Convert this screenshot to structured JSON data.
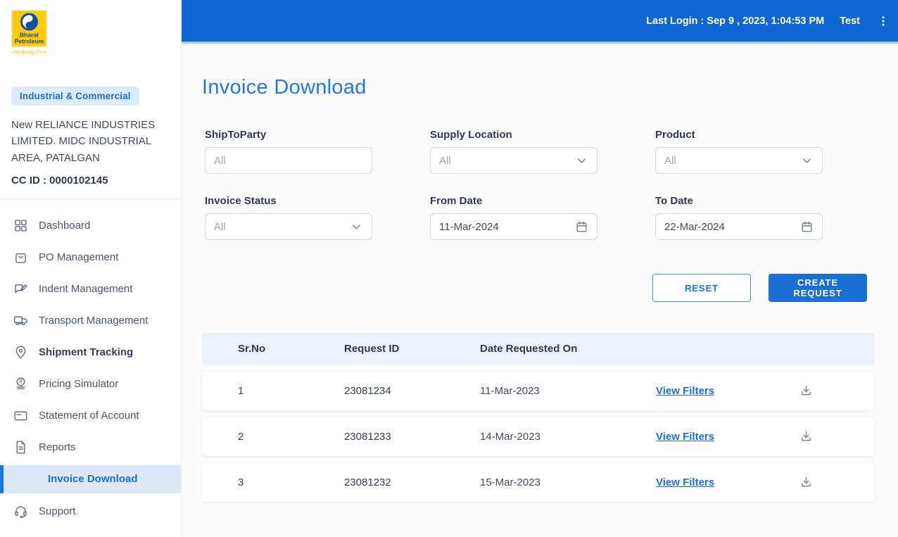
{
  "colors": {
    "header_blue": "#0d66d1",
    "header_underline": "#a9c7ee",
    "title_blue": "#2077e4",
    "accent_blue": "#1a6fd4",
    "active_nav_bg": "#dbe9f9",
    "badge_bg": "#dcebfc",
    "table_header_bg": "#edf1f9"
  },
  "brand": {
    "name_line1": "Bharat",
    "name_line2": "Petroleum",
    "tagline": "energizing lives"
  },
  "topbar": {
    "last_login_label": "Last Login :",
    "last_login_value": "Sep 9 , 2023, 1:04:53 PM",
    "user": "Test",
    "menu_icon": "kebab-menu-icon"
  },
  "sidebar": {
    "badge": "Industrial & Commercial",
    "company": "New RELIANCE INDUSTRIES LIMITED. MIDC INDUSTRIAL AREA, PATALGAN",
    "cc_id": "CC ID : 0000102145",
    "items": [
      {
        "label": "Dashboard",
        "icon": "dashboard-grid-icon"
      },
      {
        "label": "PO Management",
        "icon": "po-bag-icon"
      },
      {
        "label": "Indent Management",
        "icon": "indent-edit-icon"
      },
      {
        "label": "Transport Management",
        "icon": "truck-icon"
      },
      {
        "label": "Shipment Tracking",
        "icon": "location-pin-icon",
        "emphasis": true
      },
      {
        "label": "Pricing Simulator",
        "icon": "rupee-coin-icon"
      },
      {
        "label": "Statement of Account",
        "icon": "card-icon"
      },
      {
        "label": "Reports",
        "icon": "report-doc-icon"
      },
      {
        "label": "Invoice Download",
        "active": true
      },
      {
        "label": "Support",
        "icon": "headset-icon"
      }
    ]
  },
  "main": {
    "title": "Invoice Download",
    "filters": [
      {
        "label": "ShipToParty",
        "type": "text",
        "placeholder": "All"
      },
      {
        "label": "Supply Location",
        "type": "select",
        "value": "All"
      },
      {
        "label": "Product",
        "type": "select",
        "value": "All"
      },
      {
        "label": "Invoice Status",
        "type": "select",
        "value": "All"
      },
      {
        "label": "From Date",
        "type": "date",
        "value": "11-Mar-2024"
      },
      {
        "label": "To Date",
        "type": "date",
        "value": "22-Mar-2024"
      }
    ],
    "buttons": {
      "reset": "RESET",
      "create": "CREATE REQUEST"
    },
    "table": {
      "headers": [
        "Sr.No",
        "Request ID",
        "Date Requested On"
      ],
      "rows": [
        {
          "sr": "1",
          "request_id": "23081234",
          "date": "11-Mar-2023",
          "action": "View Filters"
        },
        {
          "sr": "2",
          "request_id": "23081233",
          "date": "14-Mar-2023",
          "action": "View Filters"
        },
        {
          "sr": "3",
          "request_id": "23081232",
          "date": "15-Mar-2023",
          "action": "View Filters"
        }
      ]
    }
  }
}
